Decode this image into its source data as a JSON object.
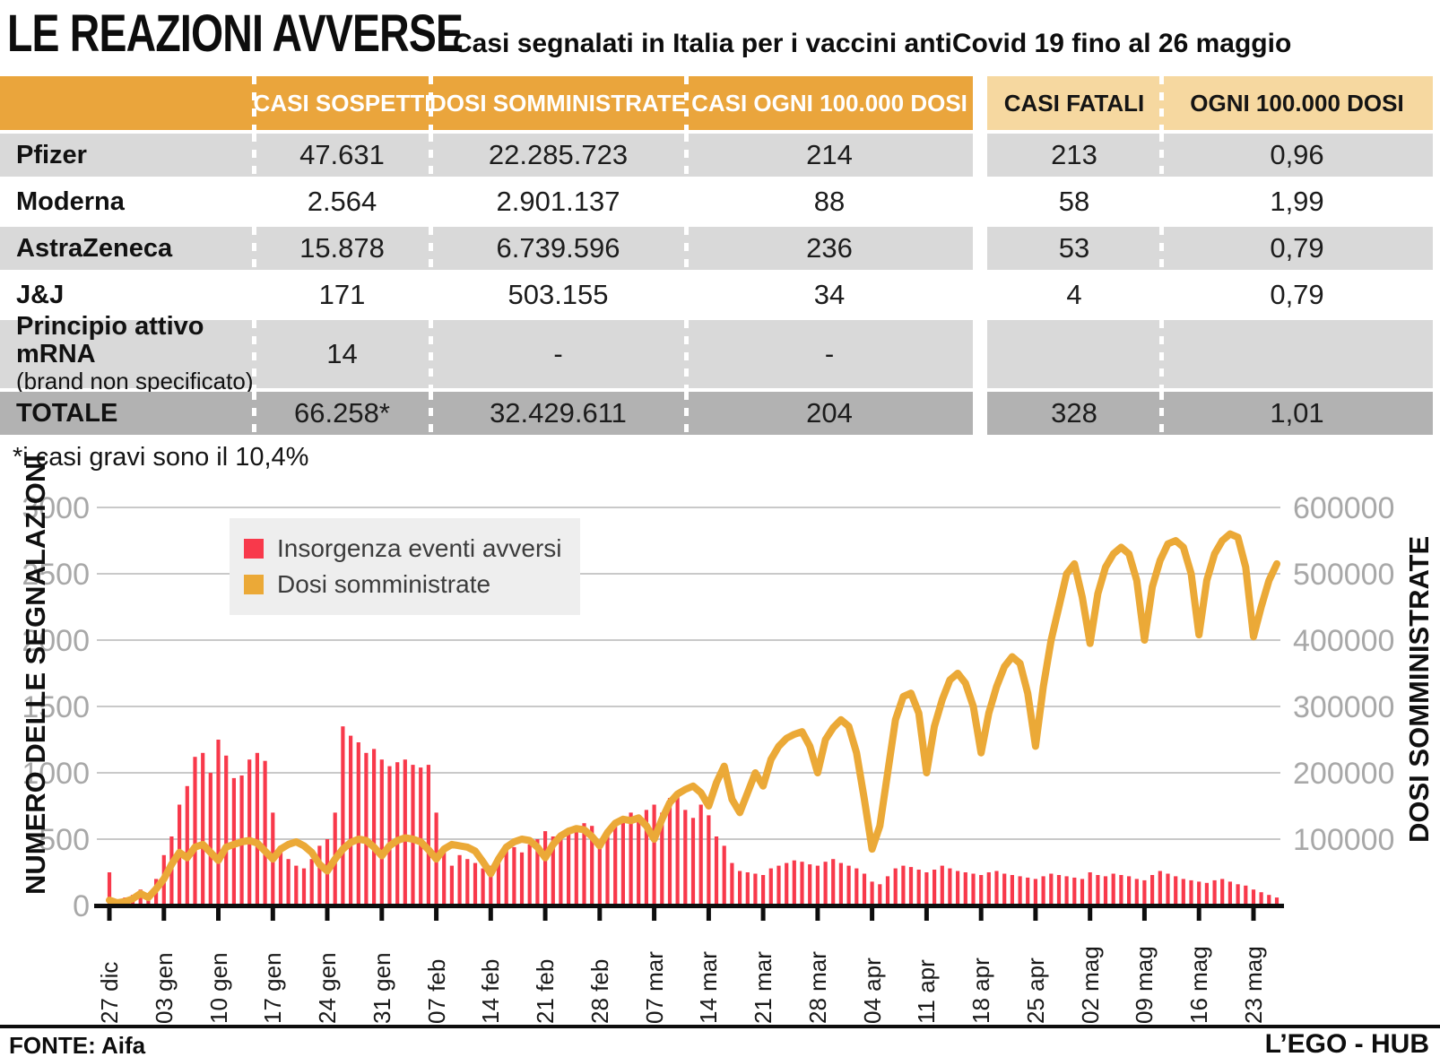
{
  "header": {
    "title": "LE REAZIONI AVVERSE",
    "subtitle": "Casi segnalati in Italia per i vaccini antiCovid 19 fino al 26 maggio"
  },
  "table": {
    "columns": [
      "CASI SOSPETTI",
      "DOSI SOMMINISTRATE",
      "CASI OGNI 100.000 DOSI",
      "CASI FATALI",
      "OGNI 100.000 DOSI"
    ],
    "rows": [
      {
        "name": "Pfizer",
        "sub": "",
        "casi_sospetti": "47.631",
        "dosi": "22.285.723",
        "casi_100k": "214",
        "fatali": "213",
        "fatali_100k": "0,96"
      },
      {
        "name": "Moderna",
        "sub": "",
        "casi_sospetti": "2.564",
        "dosi": "2.901.137",
        "casi_100k": "88",
        "fatali": "58",
        "fatali_100k": "1,99"
      },
      {
        "name": "AstraZeneca",
        "sub": "",
        "casi_sospetti": "15.878",
        "dosi": "6.739.596",
        "casi_100k": "236",
        "fatali": "53",
        "fatali_100k": "0,79"
      },
      {
        "name": "J&J",
        "sub": "",
        "casi_sospetti": "171",
        "dosi": "503.155",
        "casi_100k": "34",
        "fatali": "4",
        "fatali_100k": "0,79"
      },
      {
        "name": "Principio attivo mRNA",
        "sub": "(brand non specificato)",
        "casi_sospetti": "14",
        "dosi": "-",
        "casi_100k": "-",
        "fatali": "",
        "fatali_100k": ""
      },
      {
        "name": "TOTALE",
        "sub": "",
        "casi_sospetti": "66.258*",
        "dosi": "32.429.611",
        "casi_100k": "204",
        "fatali": "328",
        "fatali_100k": "1,01"
      }
    ],
    "note": "*i casi gravi sono il 10,4%"
  },
  "chart_data": {
    "type": "bar+line",
    "x_tick_labels": [
      "27 dic",
      "03 gen",
      "10 gen",
      "17 gen",
      "24 gen",
      "31 gen",
      "07 feb",
      "14 feb",
      "21 feb",
      "28 feb",
      "07 mar",
      "14 mar",
      "21 mar",
      "28 mar",
      "04 apr",
      "11 apr",
      "18 apr",
      "25 apr",
      "02 mag",
      "09 mag",
      "16 mag",
      "23 mag"
    ],
    "tick_interval_days": 7,
    "grid": true,
    "legend_position": "upper-left-inside",
    "left_axis": {
      "label": "NUMERO DELLE SEGNALAZIONI",
      "min": 0,
      "max": 3000,
      "ticks": [
        0,
        500,
        1000,
        1500,
        2000,
        2500,
        3000
      ]
    },
    "right_axis": {
      "label": "DOSI SOMMINISTRATE",
      "min": 0,
      "max": 600000,
      "ticks": [
        100000,
        200000,
        300000,
        400000,
        500000,
        600000
      ]
    },
    "series": [
      {
        "name": "Insorgenza eventi avversi",
        "type": "bar",
        "axis": "left",
        "color": "#F8394B",
        "values": [
          250,
          40,
          60,
          80,
          120,
          70,
          200,
          380,
          520,
          760,
          900,
          1120,
          1150,
          1000,
          1250,
          1130,
          960,
          980,
          1100,
          1150,
          1090,
          700,
          450,
          350,
          300,
          280,
          350,
          450,
          500,
          700,
          1350,
          1280,
          1230,
          1150,
          1180,
          1100,
          1050,
          1080,
          1100,
          1060,
          1040,
          1060,
          700,
          420,
          300,
          380,
          350,
          320,
          280,
          300,
          360,
          420,
          440,
          400,
          460,
          500,
          560,
          520,
          500,
          540,
          580,
          620,
          600,
          480,
          520,
          620,
          660,
          700,
          680,
          720,
          760,
          700,
          810,
          850,
          720,
          660,
          760,
          680,
          520,
          450,
          320,
          260,
          250,
          240,
          230,
          280,
          300,
          320,
          340,
          330,
          310,
          300,
          330,
          350,
          320,
          300,
          280,
          240,
          180,
          160,
          220,
          280,
          300,
          290,
          270,
          250,
          270,
          300,
          280,
          260,
          250,
          240,
          230,
          250,
          260,
          240,
          230,
          220,
          210,
          200,
          220,
          240,
          230,
          220,
          210,
          200,
          250,
          230,
          220,
          240,
          230,
          220,
          200,
          190,
          230,
          260,
          240,
          220,
          200,
          190,
          180,
          170,
          190,
          200,
          180,
          160,
          150,
          120,
          100,
          80,
          60
        ]
      },
      {
        "name": "Dosi somministrate",
        "type": "line",
        "axis": "right",
        "color": "#EBA937",
        "values": [
          8000,
          4000,
          6000,
          10000,
          18000,
          12000,
          25000,
          40000,
          62000,
          80000,
          72000,
          88000,
          92000,
          80000,
          68000,
          88000,
          92000,
          96000,
          98000,
          94000,
          82000,
          70000,
          85000,
          92000,
          96000,
          90000,
          80000,
          62000,
          52000,
          70000,
          85000,
          95000,
          100000,
          98000,
          88000,
          75000,
          90000,
          98000,
          102000,
          100000,
          96000,
          84000,
          70000,
          85000,
          92000,
          90000,
          88000,
          82000,
          66000,
          48000,
          70000,
          88000,
          96000,
          100000,
          98000,
          88000,
          72000,
          92000,
          105000,
          112000,
          116000,
          114000,
          104000,
          90000,
          110000,
          124000,
          130000,
          128000,
          132000,
          120000,
          100000,
          130000,
          155000,
          168000,
          175000,
          180000,
          170000,
          150000,
          185000,
          210000,
          160000,
          140000,
          170000,
          200000,
          180000,
          220000,
          240000,
          252000,
          258000,
          262000,
          240000,
          200000,
          250000,
          268000,
          280000,
          270000,
          230000,
          160000,
          85000,
          120000,
          200000,
          280000,
          315000,
          320000,
          290000,
          200000,
          270000,
          310000,
          340000,
          350000,
          335000,
          300000,
          230000,
          290000,
          330000,
          360000,
          375000,
          365000,
          320000,
          240000,
          330000,
          400000,
          450000,
          500000,
          515000,
          465000,
          395000,
          470000,
          510000,
          530000,
          540000,
          530000,
          490000,
          400000,
          480000,
          520000,
          545000,
          550000,
          540000,
          500000,
          408000,
          490000,
          530000,
          550000,
          560000,
          555000,
          510000,
          405000,
          450000,
          490000,
          515000
        ]
      }
    ]
  },
  "colors": {
    "header_orange": "#EAA53C",
    "header_light_orange": "#F6D8A0",
    "row_gray": "#D9D9D9",
    "row_dark_gray": "#B2B2B2",
    "bar_red": "#F8394B",
    "line_orange": "#EBA937",
    "gridline": "#C9C9C9",
    "axis_tick_text": "#A8A8A8"
  },
  "footer": {
    "source": "FONTE: Aifa",
    "brand": "L’EGO - HUB"
  }
}
